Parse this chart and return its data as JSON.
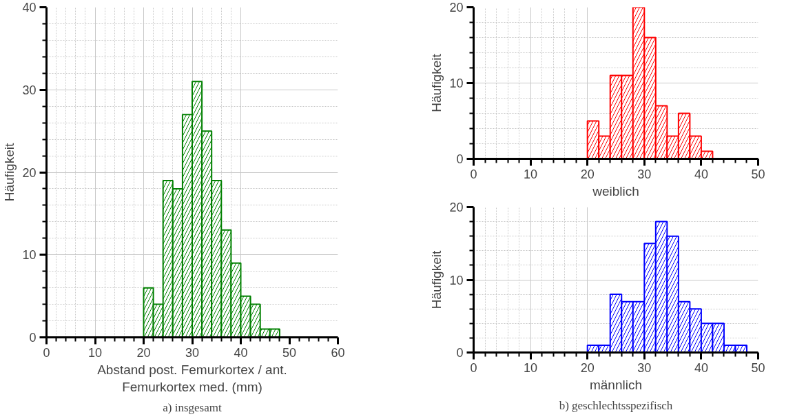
{
  "chart_data": [
    {
      "type": "histogram",
      "xlabel": "Abstand post. Femurkortex / ant. Femurkortex med. (mm)",
      "ylabel": "Häufigkeit",
      "annotations": [
        "a) insgesamt"
      ],
      "color": "#008000",
      "bins": [
        20,
        22,
        24,
        26,
        28,
        30,
        32,
        34,
        36,
        38,
        40,
        42,
        44,
        46,
        48
      ],
      "values": [
        6,
        4,
        19,
        18,
        27,
        31,
        25,
        19,
        13,
        9,
        5,
        4,
        1,
        1
      ],
      "xlim": [
        0,
        60
      ],
      "xticks": [
        0,
        10,
        20,
        30,
        40,
        50,
        60
      ],
      "ylim": [
        0,
        40
      ],
      "yticks": [
        0,
        10,
        20,
        30,
        40
      ],
      "grid": true
    },
    {
      "type": "histogram",
      "xlabel": "weiblich",
      "ylabel": "Häufigkeit",
      "color": "#ff0000",
      "bins": [
        20,
        22,
        24,
        26,
        28,
        30,
        32,
        34,
        36,
        38,
        40,
        42
      ],
      "values": [
        5,
        3,
        11,
        11,
        20,
        16,
        7,
        3,
        6,
        3,
        1
      ],
      "xlim": [
        0,
        50
      ],
      "xticks": [
        0,
        10,
        20,
        30,
        40,
        50
      ],
      "ylim": [
        0,
        20
      ],
      "yticks": [
        0,
        10,
        20
      ],
      "grid": true
    },
    {
      "type": "histogram",
      "xlabel": "männlich",
      "ylabel": "Häufigkeit",
      "annotations": [
        "b) geschlechtsspezifisch"
      ],
      "color": "#0000ff",
      "bins": [
        20,
        22,
        24,
        26,
        28,
        30,
        32,
        34,
        36,
        38,
        40,
        42,
        44,
        46,
        48
      ],
      "values": [
        1,
        1,
        8,
        7,
        7,
        15,
        18,
        16,
        7,
        6,
        4,
        4,
        1,
        1
      ],
      "xlim": [
        0,
        50
      ],
      "xticks": [
        0,
        10,
        20,
        30,
        40,
        50
      ],
      "ylim": [
        0,
        20
      ],
      "yticks": [
        0,
        10,
        20
      ],
      "grid": true
    }
  ]
}
